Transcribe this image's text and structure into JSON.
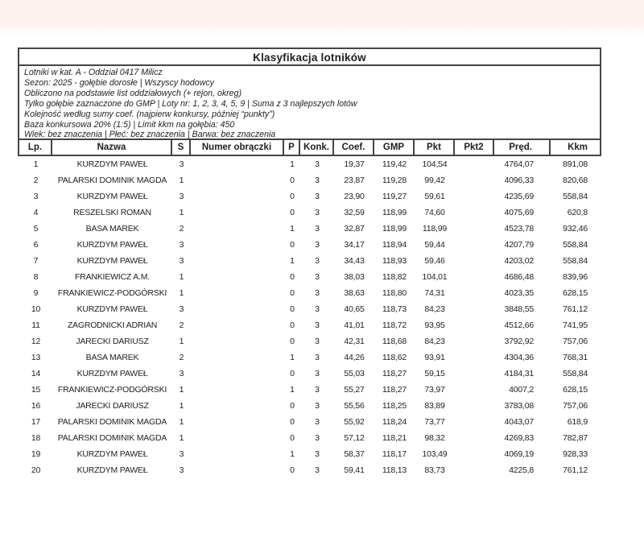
{
  "colors": {
    "top_strip": "#fdf2ef",
    "border": "#454545",
    "text": "#1f1f1f"
  },
  "page": {
    "title": "Klasyfikacja lotników",
    "info_lines": [
      "Lotniki w kat. A - Oddział 0417 Milicz",
      "Sezon: 2025 - gołębie dorosłe  |  Wszyscy hodowcy",
      "Obliczono na podstawie list oddziałowych (+ rejon, okreg)",
      "Tylko gołębie zaznaczone do GMP  |  Loty nr: 1, 2, 3, 4, 5, 9  |  Suma z 3 najlepszych lotów",
      "Kolejność według sumy coef. (najpierw konkursy, później “punkty”)",
      "Baza konkursowa 20% (1:5) | Limit kkm na gołębia: 450",
      "Wiek: bez znaczenia  |  Płeć: bez znaczenia  |  Barwa: bez znaczenia"
    ]
  },
  "table": {
    "columns": [
      "Lp.",
      "Nazwa",
      "S",
      "Numer obrączki",
      "P",
      "Konk.",
      "Coef.",
      "GMP",
      "Pkt",
      "Pkt2",
      "Pręd.",
      "Kkm"
    ],
    "rows": [
      [
        "1",
        "KURZDYM PAWEŁ",
        "3",
        "",
        "1",
        "3",
        "19,37",
        "119,42",
        "104,54",
        "",
        "4764,07",
        "891,08"
      ],
      [
        "2",
        "PALARSKI DOMINIK MAGDA",
        "1",
        "",
        "0",
        "3",
        "23,87",
        "119,28",
        "99,42",
        "",
        "4096,33",
        "820,68"
      ],
      [
        "3",
        "KURZDYM PAWEŁ",
        "3",
        "",
        "0",
        "3",
        "23,90",
        "119,27",
        "59,61",
        "",
        "4235,69",
        "558,84"
      ],
      [
        "4",
        "RESZELSKI ROMAN",
        "1",
        "",
        "0",
        "3",
        "32,59",
        "118,99",
        "74,60",
        "",
        "4075,69",
        "620,8"
      ],
      [
        "5",
        "BASA MAREK",
        "2",
        "",
        "1",
        "3",
        "32,87",
        "118,99",
        "118,99",
        "",
        "4523,78",
        "932,46"
      ],
      [
        "6",
        "KURZDYM PAWEŁ",
        "3",
        "",
        "0",
        "3",
        "34,17",
        "118,94",
        "59,44",
        "",
        "4207,79",
        "558,84"
      ],
      [
        "7",
        "KURZDYM PAWEŁ",
        "3",
        "",
        "1",
        "3",
        "34,43",
        "118,93",
        "59,46",
        "",
        "4203,02",
        "558,84"
      ],
      [
        "8",
        "FRANKIEWICZ A.M.",
        "1",
        "",
        "0",
        "3",
        "38,03",
        "118,82",
        "104,01",
        "",
        "4686,48",
        "839,96"
      ],
      [
        "9",
        "FRANKIEWICZ-PODGÓRSKI",
        "1",
        "",
        "0",
        "3",
        "38,63",
        "118,80",
        "74,31",
        "",
        "4023,35",
        "628,15"
      ],
      [
        "10",
        "KURZDYM PAWEŁ",
        "3",
        "",
        "0",
        "3",
        "40,65",
        "118,73",
        "84,23",
        "",
        "3848,55",
        "761,12"
      ],
      [
        "11",
        "ZAGRODNICKI ADRIAN",
        "2",
        "",
        "0",
        "3",
        "41,01",
        "118,72",
        "93,95",
        "",
        "4512,66",
        "741,95"
      ],
      [
        "12",
        "JARECKI DARIUSZ",
        "1",
        "",
        "0",
        "3",
        "42,31",
        "118,68",
        "84,23",
        "",
        "3792,92",
        "757,06"
      ],
      [
        "13",
        "BASA MAREK",
        "2",
        "",
        "1",
        "3",
        "44,26",
        "118,62",
        "93,91",
        "",
        "4304,36",
        "768,31"
      ],
      [
        "14",
        "KURZDYM PAWEŁ",
        "3",
        "",
        "0",
        "3",
        "55,03",
        "118,27",
        "59,15",
        "",
        "4184,31",
        "558,84"
      ],
      [
        "15",
        "FRANKIEWICZ-PODGÓRSKI",
        "1",
        "",
        "1",
        "3",
        "55,27",
        "118,27",
        "73,97",
        "",
        "4007,2",
        "628,15"
      ],
      [
        "16",
        "JARECKI DARIUSZ",
        "1",
        "",
        "0",
        "3",
        "55,56",
        "118,25",
        "83,89",
        "",
        "3783,08",
        "757,06"
      ],
      [
        "17",
        "PALARSKI DOMINIK MAGDA",
        "1",
        "",
        "0",
        "3",
        "55,92",
        "118,24",
        "73,77",
        "",
        "4043,07",
        "618,9"
      ],
      [
        "18",
        "PALARSKI DOMINIK MAGDA",
        "1",
        "",
        "0",
        "3",
        "57,12",
        "118,21",
        "98,32",
        "",
        "4269,83",
        "782,87"
      ],
      [
        "19",
        "KURZDYM PAWEŁ",
        "3",
        "",
        "1",
        "3",
        "58,37",
        "118,17",
        "103,49",
        "",
        "4069,19",
        "928,33"
      ],
      [
        "20",
        "KURZDYM PAWEŁ",
        "3",
        "",
        "0",
        "3",
        "59,41",
        "118,13",
        "83,73",
        "",
        "4225,8",
        "761,12"
      ]
    ]
  }
}
